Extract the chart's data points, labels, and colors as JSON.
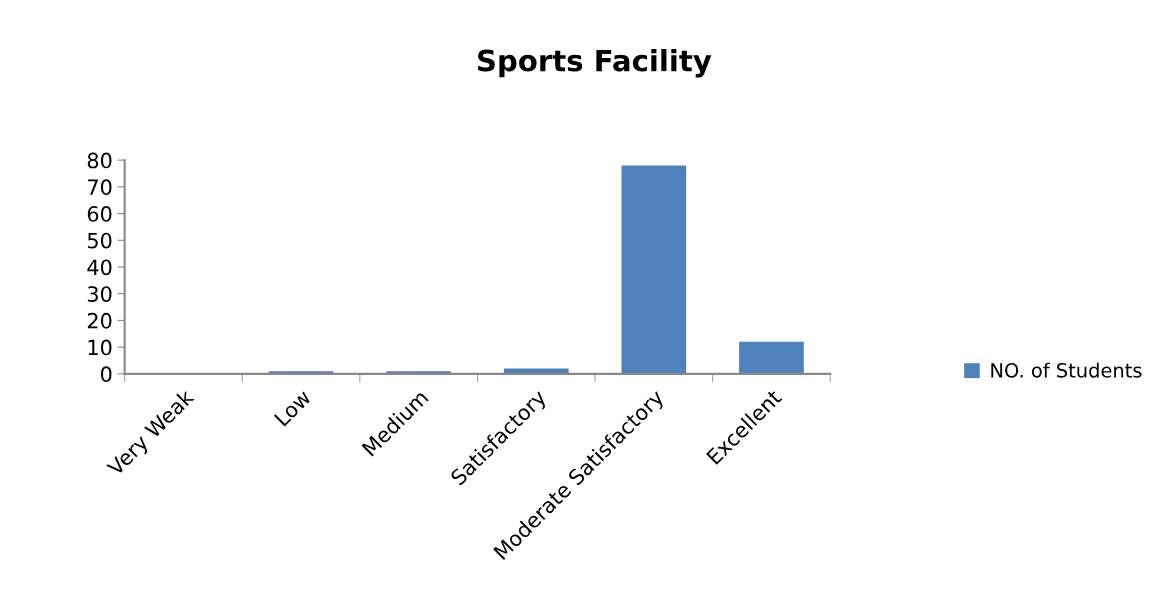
{
  "chart_data": {
    "type": "bar",
    "title": "Sports Facility",
    "categories": [
      "Very Weak",
      "Low",
      "Medium",
      "Satisfactory",
      "Moderate Satisfactory",
      "Excellent"
    ],
    "series": [
      {
        "name": "NO. of Students",
        "color": "#4f81bd",
        "values": [
          0,
          1,
          1,
          2,
          78,
          12
        ]
      }
    ],
    "ylim": [
      0,
      80
    ],
    "yticks": [
      0,
      10,
      20,
      30,
      40,
      50,
      60,
      70,
      80
    ],
    "grid": false,
    "legend": "right"
  }
}
